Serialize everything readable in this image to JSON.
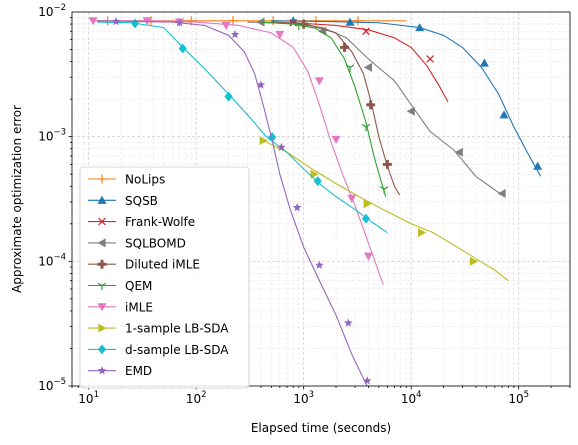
{
  "chart_data": {
    "type": "line",
    "xlabel": "Elapsed time (seconds)",
    "ylabel": "Approximate optimization error",
    "xscale": "log",
    "yscale": "log",
    "xlim": [
      7,
      300000
    ],
    "ylim": [
      1e-05,
      0.01
    ],
    "x_ticks": [
      {
        "value": 10,
        "base": "10",
        "exp": "1"
      },
      {
        "value": 100,
        "base": "10",
        "exp": "2"
      },
      {
        "value": 1000,
        "base": "10",
        "exp": "3"
      },
      {
        "value": 10000,
        "base": "10",
        "exp": "4"
      },
      {
        "value": 100000,
        "base": "10",
        "exp": "5"
      }
    ],
    "y_ticks": [
      {
        "value": 1e-05,
        "base": "10",
        "exp": "−5"
      },
      {
        "value": 0.0001,
        "base": "10",
        "exp": "−4"
      },
      {
        "value": 0.001,
        "base": "10",
        "exp": "−3"
      },
      {
        "value": 0.01,
        "base": "10",
        "exp": "−2"
      }
    ],
    "grid": true,
    "legend_position": "lower-left",
    "series": [
      {
        "name": "NoLips",
        "color": "#ff7f0e",
        "marker": "plus",
        "x": [
          12,
          20,
          40,
          80,
          150,
          300,
          600,
          1200,
          2500,
          5000,
          9000
        ],
        "y": [
          0.0085,
          0.0085,
          0.0085,
          0.0085,
          0.0085,
          0.0085,
          0.0085,
          0.0085,
          0.0085,
          0.0085,
          0.0085
        ],
        "markers_x": [
          15,
          38,
          90,
          220,
          520,
          1300,
          3200
        ],
        "markers_y": [
          0.0085,
          0.0085,
          0.0085,
          0.0085,
          0.0085,
          0.0085,
          0.0085
        ]
      },
      {
        "name": "SQSB",
        "color": "#1f77b4",
        "marker": "triangle-up",
        "x": [
          500,
          1500,
          5000,
          12000,
          20000,
          30000,
          45000,
          65000,
          90000,
          120000,
          160000
        ],
        "y": [
          0.0085,
          0.0084,
          0.0082,
          0.0075,
          0.0065,
          0.0052,
          0.0036,
          0.0022,
          0.0012,
          0.00075,
          0.00048
        ],
        "markers_x": [
          800,
          2700,
          12000,
          48000,
          73000,
          150000
        ],
        "markers_y": [
          0.0085,
          0.0083,
          0.0075,
          0.0039,
          0.0015,
          0.00058
        ]
      },
      {
        "name": "Frank-Wolfe",
        "color": "#d62728",
        "marker": "x",
        "x": [
          800,
          2000,
          4000,
          7000,
          10000,
          14000,
          18000,
          22000
        ],
        "y": [
          0.0082,
          0.0078,
          0.0072,
          0.0062,
          0.0052,
          0.0037,
          0.0026,
          0.0019
        ],
        "markers_x": [
          800,
          3800,
          15000
        ],
        "markers_y": [
          0.0082,
          0.007,
          0.0042
        ]
      },
      {
        "name": "SQLBOMD",
        "color": "#7f7f7f",
        "marker": "triangle-left",
        "x": [
          300,
          800,
          1500,
          2500,
          4000,
          7000,
          10000,
          15000,
          25000,
          40000,
          70000
        ],
        "y": [
          0.0083,
          0.0081,
          0.0075,
          0.0062,
          0.0042,
          0.0028,
          0.0018,
          0.0011,
          0.00078,
          0.00048,
          0.00034
        ],
        "markers_x": [
          400,
          1500,
          4000,
          10000,
          28000,
          70000
        ],
        "markers_y": [
          0.0083,
          0.007,
          0.0036,
          0.0016,
          0.00075,
          0.00035
        ]
      },
      {
        "name": "Diluted iMLE",
        "color": "#8c564b",
        "marker": "plus-filled",
        "x": [
          500,
          1000,
          2000,
          2800,
          3600,
          4300,
          5000,
          6000,
          7000,
          7800
        ],
        "y": [
          0.0083,
          0.0081,
          0.0068,
          0.0048,
          0.0032,
          0.0018,
          0.001,
          0.00058,
          0.0004,
          0.00034
        ],
        "markers_x": [
          1000,
          2400,
          4200,
          6000
        ],
        "markers_y": [
          0.008,
          0.0052,
          0.0018,
          0.0006
        ]
      },
      {
        "name": "QEM",
        "color": "#2ca02c",
        "marker": "tri-down",
        "x": [
          400,
          800,
          1300,
          1800,
          2400,
          3000,
          3800,
          4500,
          5200,
          5800
        ],
        "y": [
          0.0083,
          0.008,
          0.0074,
          0.0062,
          0.0042,
          0.0025,
          0.0013,
          0.0007,
          0.00045,
          0.00033
        ],
        "markers_x": [
          900,
          2700,
          3800,
          5600
        ],
        "markers_y": [
          0.0078,
          0.0036,
          0.0012,
          0.00038
        ]
      },
      {
        "name": "iMLE",
        "color": "#e377c2",
        "marker": "triangle-down",
        "x": [
          11,
          40,
          100,
          250,
          500,
          800,
          1100,
          1400,
          1800,
          2300,
          3000,
          4000,
          5500
        ],
        "y": [
          0.0085,
          0.0085,
          0.0083,
          0.0078,
          0.0068,
          0.0052,
          0.0033,
          0.0018,
          0.0009,
          0.0005,
          0.00028,
          0.00014,
          6.5e-05
        ],
        "markers_x": [
          11,
          35,
          70,
          190,
          600,
          1400,
          2000,
          2800,
          4000
        ],
        "markers_y": [
          0.0085,
          0.0085,
          0.0083,
          0.0078,
          0.0066,
          0.0028,
          0.00095,
          0.00032,
          0.00011
        ]
      },
      {
        "name": "1-sample LB-SDA",
        "color": "#bcbd22",
        "marker": "triangle-right",
        "x": [
          400,
          700,
          1200,
          2000,
          3500,
          6000,
          10000,
          16000,
          25000,
          40000,
          60000,
          80000
        ],
        "y": [
          0.00095,
          0.00075,
          0.00055,
          0.00042,
          0.00032,
          0.00025,
          0.0002,
          0.00017,
          0.000135,
          0.000105,
          8.5e-05,
          7e-05
        ],
        "markers_x": [
          420,
          1250,
          3900,
          12500,
          38000
        ],
        "markers_y": [
          0.00093,
          0.0005,
          0.00029,
          0.00017,
          0.0001
        ]
      },
      {
        "name": "d-sample LB-SDA",
        "color": "#17becf",
        "marker": "diamond",
        "x": [
          12,
          25,
          50,
          75,
          120,
          200,
          300,
          450,
          700,
          1000,
          1400,
          2000,
          3000,
          4200,
          6000
        ],
        "y": [
          0.0083,
          0.0082,
          0.0075,
          0.0052,
          0.0035,
          0.0022,
          0.0015,
          0.001,
          0.00075,
          0.00055,
          0.00042,
          0.00033,
          0.00026,
          0.00021,
          0.00017
        ],
        "markers_x": [
          27,
          75,
          200,
          510,
          1350,
          3800
        ],
        "markers_y": [
          0.0081,
          0.0051,
          0.0021,
          0.00099,
          0.00044,
          0.00022
        ]
      },
      {
        "name": "EMD",
        "color": "#9467bd",
        "marker": "star",
        "x": [
          12,
          25,
          60,
          120,
          200,
          280,
          350,
          420,
          500,
          600,
          750,
          1000,
          1400,
          2000,
          2800,
          4000
        ],
        "y": [
          0.0085,
          0.0084,
          0.0083,
          0.0078,
          0.0065,
          0.0048,
          0.0032,
          0.0018,
          0.001,
          0.0005,
          0.00026,
          0.00013,
          7e-05,
          3.7e-05,
          1.8e-05,
          9.5e-06
        ],
        "markers_x": [
          18,
          70,
          230,
          400,
          620,
          870,
          1400,
          2600,
          3900
        ],
        "markers_y": [
          0.0084,
          0.0082,
          0.0066,
          0.0026,
          0.00082,
          0.00027,
          9.3e-05,
          3.2e-05,
          1.1e-05
        ]
      }
    ]
  }
}
